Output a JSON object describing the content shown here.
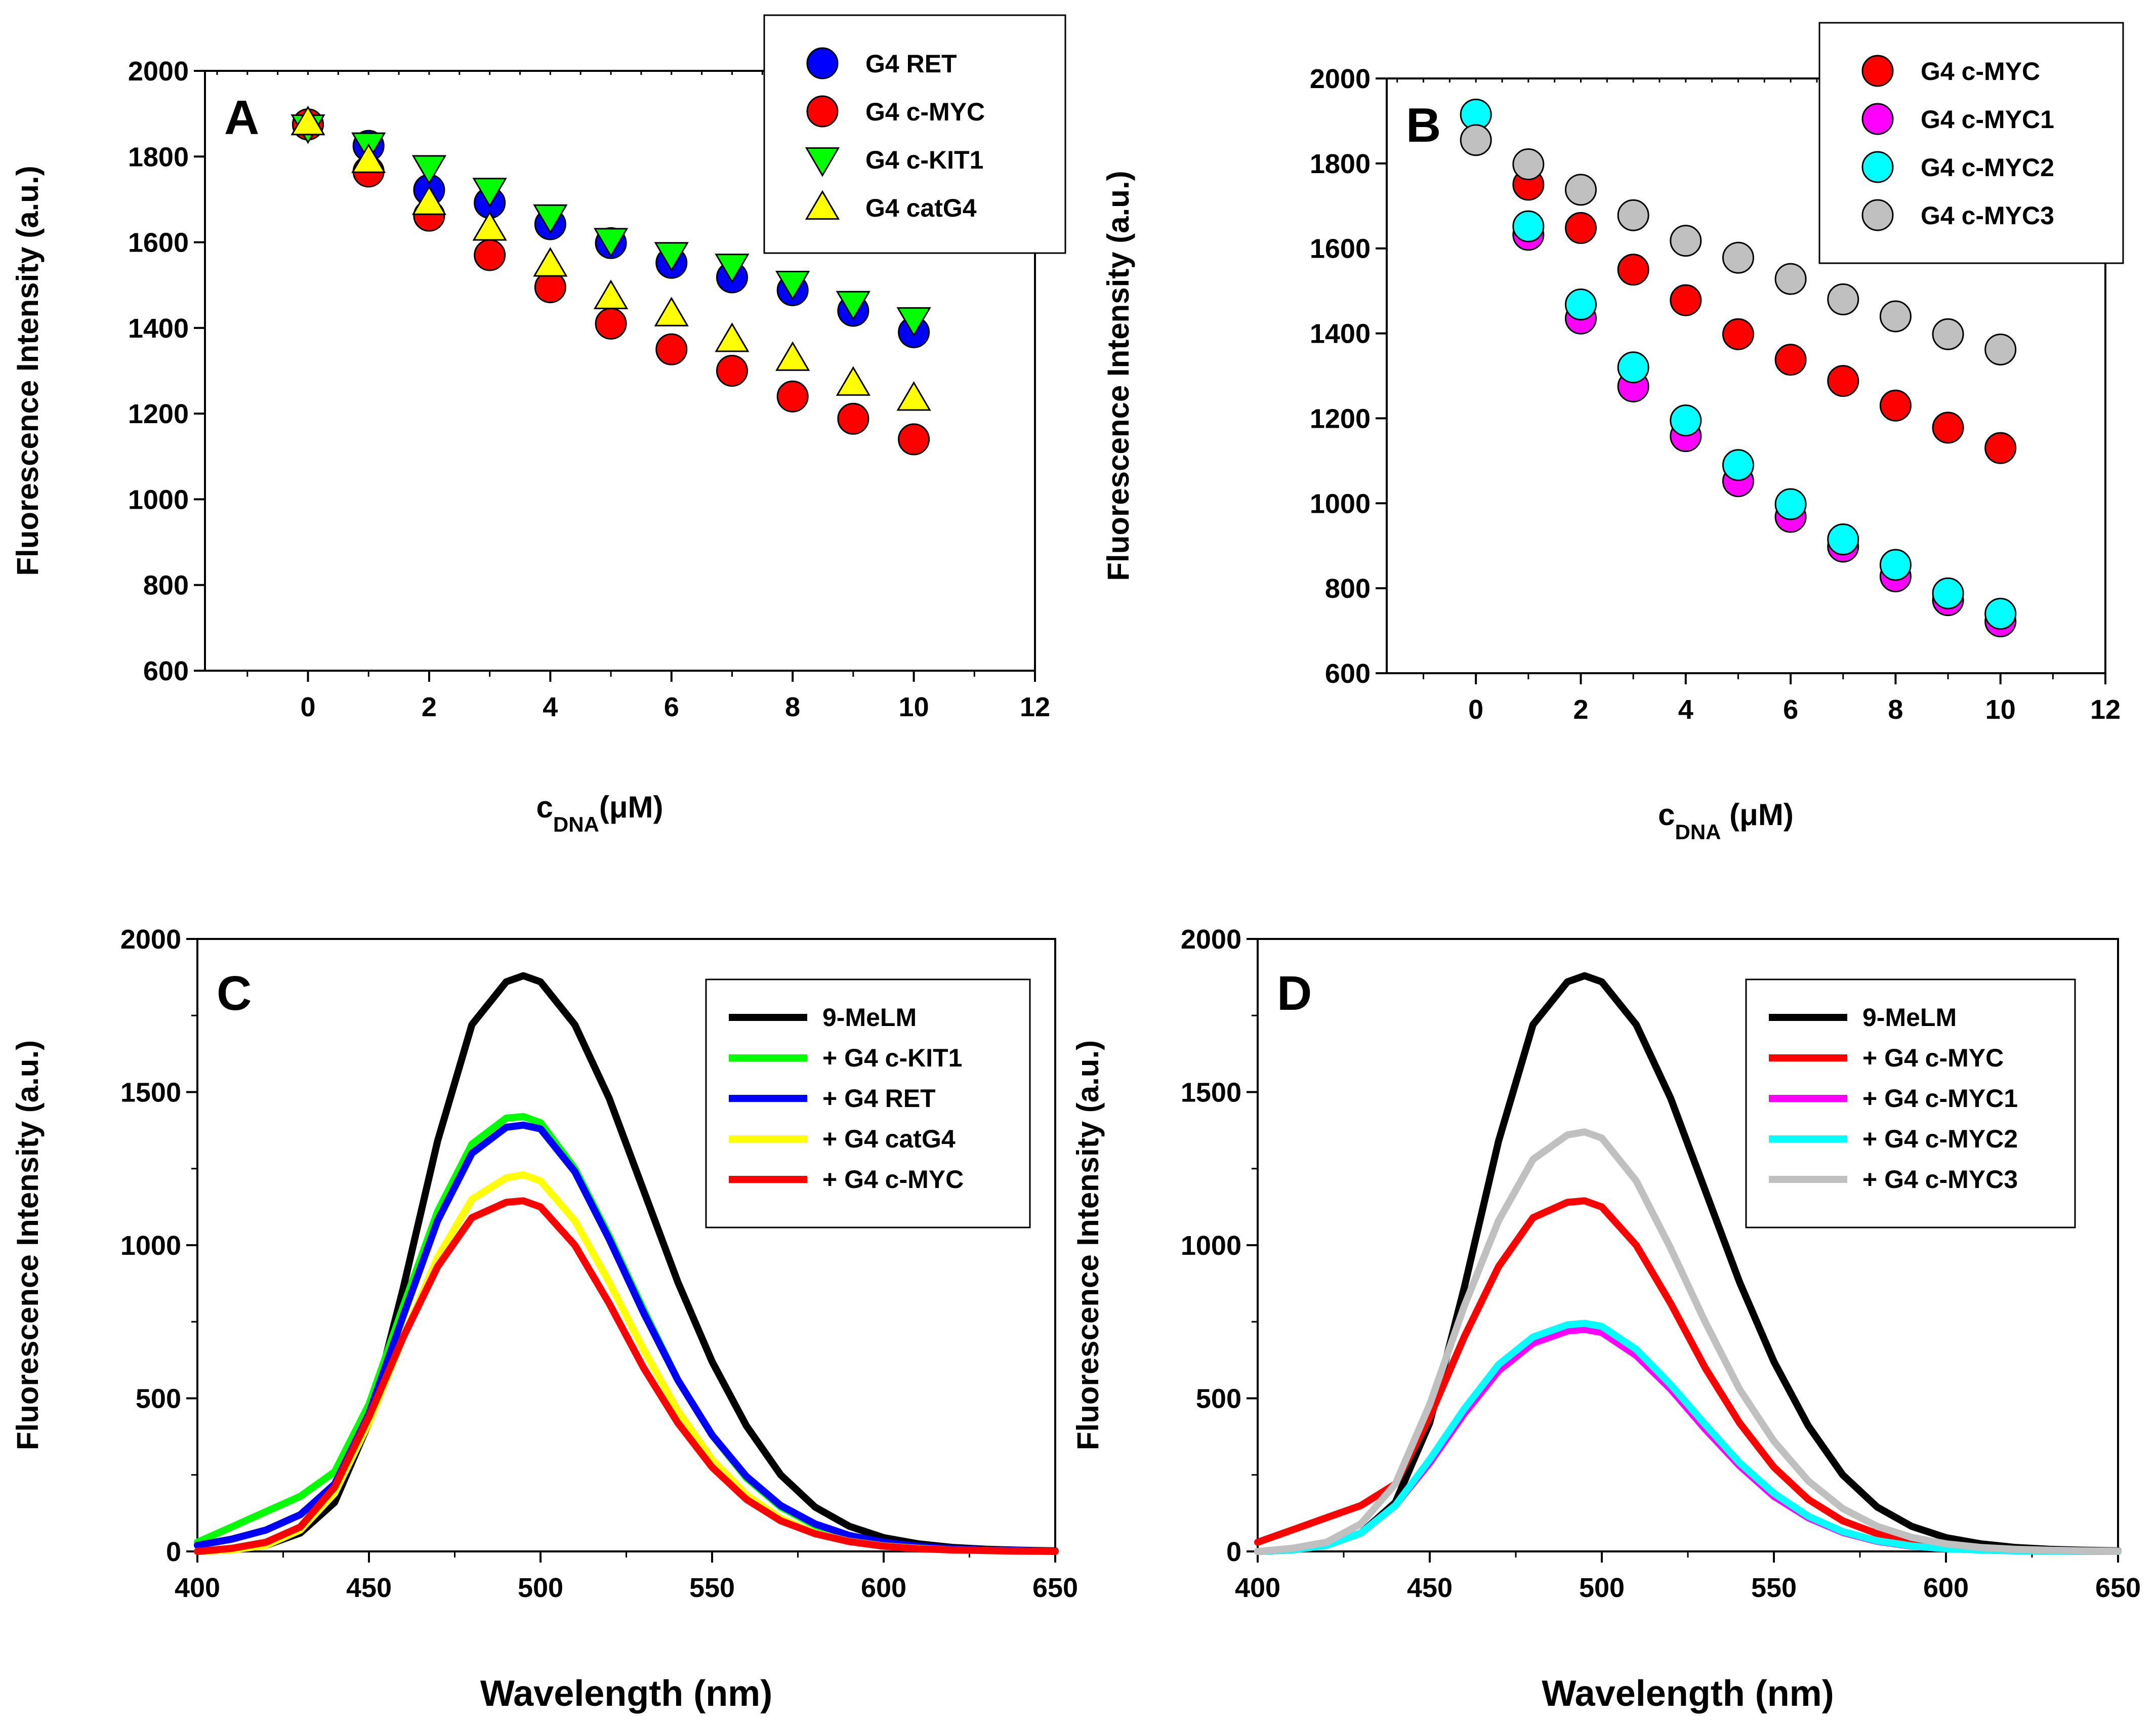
{
  "chart_data": [
    {
      "panel": "A",
      "type": "scatter",
      "ylabel": "Fluorescence Intensity (a.u.)",
      "xlabel": {
        "main": "c",
        "sub": "DNA",
        "unit": "(μM)"
      },
      "xlim": [
        -1.7,
        12
      ],
      "ylim": [
        600,
        2000
      ],
      "xticks": [
        0,
        2,
        4,
        6,
        8,
        10,
        12
      ],
      "yticks": [
        600,
        800,
        1000,
        1200,
        1400,
        1600,
        1800,
        2000
      ],
      "legend_position": "top-right",
      "series": [
        {
          "name": "G4 RET",
          "marker": "circle",
          "color": "#0000ff",
          "x": [
            0,
            1,
            2,
            3,
            4,
            5,
            6,
            7,
            8,
            9,
            10
          ],
          "y": [
            1875,
            1825,
            1722,
            1692,
            1642,
            1598,
            1552,
            1518,
            1488,
            1440,
            1390
          ]
        },
        {
          "name": "G4 c-MYC",
          "marker": "circle",
          "color": "#ff0000",
          "x": [
            0,
            1,
            2,
            3,
            4,
            5,
            6,
            7,
            8,
            9,
            10
          ],
          "y": [
            1875,
            1765,
            1662,
            1570,
            1495,
            1410,
            1350,
            1300,
            1240,
            1188,
            1140
          ]
        },
        {
          "name": "G4 c-KIT1",
          "marker": "triangle-down",
          "color": "#00ff00",
          "x": [
            0,
            1,
            2,
            3,
            4,
            5,
            6,
            7,
            8,
            9,
            10
          ],
          "y": [
            1870,
            1828,
            1775,
            1722,
            1660,
            1605,
            1572,
            1545,
            1505,
            1458,
            1420
          ]
        },
        {
          "name": "G4 catG4",
          "marker": "triangle-up",
          "color": "#ffff00",
          "x": [
            0,
            1,
            2,
            3,
            4,
            5,
            6,
            7,
            8,
            9,
            10
          ],
          "y": [
            1878,
            1790,
            1692,
            1632,
            1548,
            1472,
            1432,
            1372,
            1328,
            1270,
            1235
          ]
        }
      ]
    },
    {
      "panel": "B",
      "type": "scatter",
      "ylabel": "Fluorescence Intensity (a.u.)",
      "xlabel": {
        "main": "c",
        "sub": "DNA",
        "unit": " (μM)"
      },
      "xlim": [
        -1.7,
        12
      ],
      "ylim": [
        600,
        2000
      ],
      "xticks": [
        0,
        2,
        4,
        6,
        8,
        10,
        12
      ],
      "yticks": [
        600,
        800,
        1000,
        1200,
        1400,
        1600,
        1800,
        2000
      ],
      "legend_position": "top-right",
      "series": [
        {
          "name": "G4 c-MYC",
          "marker": "circle",
          "color": "#ff0000",
          "x": [
            1,
            2,
            3,
            4,
            5,
            6,
            7,
            8,
            9,
            10
          ],
          "y": [
            1750,
            1648,
            1550,
            1478,
            1398,
            1338,
            1288,
            1230,
            1178,
            1130
          ]
        },
        {
          "name": "G4 c-MYC1",
          "marker": "circle",
          "color": "#ff00ff",
          "x": [
            1,
            2,
            3,
            4,
            5,
            6,
            7,
            8,
            9,
            10
          ],
          "y": [
            1632,
            1435,
            1275,
            1158,
            1052,
            968,
            898,
            828,
            772,
            722
          ]
        },
        {
          "name": "G4 c-MYC2",
          "marker": "circle",
          "color": "#00ffff",
          "x": [
            0,
            1,
            2,
            3,
            4,
            5,
            6,
            7,
            8,
            9,
            10
          ],
          "y": [
            1915,
            1652,
            1468,
            1320,
            1195,
            1090,
            998,
            915,
            855,
            788,
            740
          ]
        },
        {
          "name": "G4 c-MYC3",
          "marker": "circle",
          "color": "#c0c0c0",
          "x": [
            0,
            1,
            2,
            3,
            4,
            5,
            6,
            7,
            8,
            9,
            10
          ],
          "y": [
            1855,
            1798,
            1738,
            1678,
            1618,
            1578,
            1528,
            1480,
            1440,
            1398,
            1362
          ]
        }
      ]
    },
    {
      "panel": "C",
      "type": "line",
      "ylabel": "Fluorescence Intensity (a.u.)",
      "xlabel": "Wavelength (nm)",
      "xlim": [
        400,
        650
      ],
      "ylim": [
        0,
        2000
      ],
      "xticks": [
        400,
        450,
        500,
        550,
        600,
        650
      ],
      "yticks": [
        0,
        500,
        1000,
        1500,
        2000
      ],
      "legend_position": "top-right",
      "x": [
        400,
        410,
        420,
        430,
        440,
        450,
        460,
        470,
        480,
        490,
        495,
        500,
        510,
        520,
        530,
        540,
        550,
        560,
        570,
        580,
        590,
        600,
        610,
        620,
        630,
        640,
        650
      ],
      "series": [
        {
          "name": "9-MeLM",
          "color": "#000000",
          "values": [
            0,
            5,
            20,
            60,
            160,
            420,
            860,
            1340,
            1720,
            1860,
            1880,
            1860,
            1720,
            1480,
            1180,
            880,
            620,
            410,
            250,
            145,
            82,
            45,
            25,
            13,
            7,
            4,
            2
          ]
        },
        {
          "name": "+ G4 c-KIT1",
          "color": "#00ff00",
          "values": [
            30,
            80,
            130,
            180,
            260,
            480,
            800,
            1110,
            1330,
            1415,
            1420,
            1400,
            1250,
            1030,
            790,
            560,
            380,
            240,
            145,
            85,
            48,
            27,
            15,
            8,
            4,
            2,
            1
          ]
        },
        {
          "name": "+ G4 RET",
          "color": "#0000ff",
          "values": [
            20,
            40,
            70,
            120,
            220,
            450,
            770,
            1080,
            1300,
            1385,
            1392,
            1380,
            1240,
            1020,
            780,
            560,
            380,
            245,
            150,
            90,
            52,
            30,
            17,
            9,
            5,
            3,
            1
          ]
        },
        {
          "name": "+ G4 catG4",
          "color": "#ffff00",
          "values": [
            0,
            5,
            20,
            70,
            190,
            420,
            700,
            960,
            1150,
            1220,
            1230,
            1210,
            1080,
            880,
            660,
            460,
            300,
            185,
            108,
            60,
            33,
            18,
            10,
            5,
            3,
            1,
            0
          ]
        },
        {
          "name": "+ G4 c-MYC",
          "color": "#ff0000",
          "values": [
            0,
            10,
            30,
            80,
            210,
            440,
            700,
            930,
            1090,
            1140,
            1145,
            1125,
            1000,
            810,
            600,
            420,
            275,
            170,
            100,
            58,
            32,
            17,
            9,
            5,
            3,
            1,
            0
          ]
        }
      ]
    },
    {
      "panel": "D",
      "type": "line",
      "ylabel": "Fluorescence Intensity (a.u.)",
      "xlabel": "Wavelength (nm)",
      "xlim": [
        400,
        650
      ],
      "ylim": [
        0,
        2000
      ],
      "xticks": [
        400,
        450,
        500,
        550,
        600,
        650
      ],
      "yticks": [
        0,
        500,
        1000,
        1500,
        2000
      ],
      "legend_position": "top-right",
      "x": [
        400,
        410,
        420,
        430,
        440,
        450,
        460,
        470,
        480,
        490,
        495,
        500,
        510,
        520,
        530,
        540,
        550,
        560,
        570,
        580,
        590,
        600,
        610,
        620,
        630,
        640,
        650
      ],
      "series": [
        {
          "name": "9-MeLM",
          "color": "#000000",
          "values": [
            0,
            5,
            20,
            60,
            160,
            420,
            860,
            1340,
            1720,
            1860,
            1880,
            1860,
            1720,
            1480,
            1180,
            880,
            620,
            410,
            250,
            145,
            82,
            45,
            25,
            13,
            7,
            4,
            2
          ]
        },
        {
          "name": "+ G4 c-MYC",
          "color": "#ff0000",
          "values": [
            30,
            70,
            110,
            150,
            220,
            440,
            700,
            930,
            1090,
            1140,
            1145,
            1125,
            1000,
            810,
            600,
            420,
            275,
            170,
            100,
            58,
            32,
            17,
            9,
            5,
            3,
            1,
            0
          ]
        },
        {
          "name": "+ G4 c-MYC1",
          "color": "#ff00ff",
          "values": [
            0,
            5,
            20,
            60,
            150,
            290,
            450,
            590,
            680,
            720,
            725,
            715,
            640,
            530,
            400,
            280,
            180,
            110,
            62,
            33,
            17,
            9,
            5,
            2,
            1,
            0,
            0
          ]
        },
        {
          "name": "+ G4 c-MYC2",
          "color": "#00ffff",
          "values": [
            0,
            5,
            20,
            60,
            150,
            300,
            465,
            610,
            700,
            740,
            745,
            735,
            660,
            545,
            415,
            290,
            190,
            115,
            65,
            35,
            18,
            9,
            5,
            2,
            1,
            0,
            0
          ]
        },
        {
          "name": "+ G4 c-MYC3",
          "color": "#c0c0c0",
          "values": [
            0,
            10,
            30,
            90,
            220,
            480,
            800,
            1080,
            1280,
            1360,
            1370,
            1350,
            1210,
            990,
            750,
            530,
            360,
            230,
            140,
            82,
            46,
            25,
            13,
            7,
            4,
            2,
            1
          ]
        }
      ]
    }
  ]
}
